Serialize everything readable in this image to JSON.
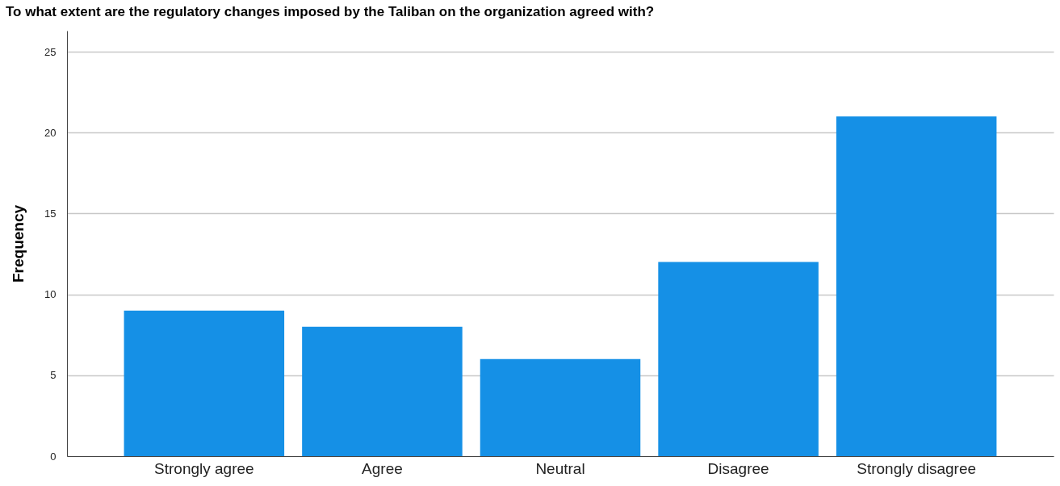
{
  "chart_data": {
    "type": "bar",
    "title": "To what extent are the regulatory changes imposed by the Taliban on the organization agreed with?",
    "ylabel": "Frequency",
    "categories": [
      "Strongly agree",
      "Agree",
      "Neutral",
      "Disagree",
      "Strongly disagree"
    ],
    "values": [
      9,
      8,
      6,
      12,
      21
    ],
    "color": "#1590e6",
    "ylim": [
      0,
      26.3
    ],
    "yticks": [
      0,
      5,
      10,
      15,
      20,
      25
    ],
    "grid": "y"
  }
}
